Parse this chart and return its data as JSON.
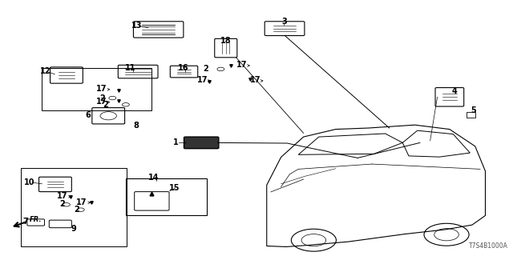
{
  "background_color": "#ffffff",
  "diagram_code": "T7S4B1000A",
  "label_fontsize": 7,
  "line_color": "#000000",
  "text_color": "#000000"
}
